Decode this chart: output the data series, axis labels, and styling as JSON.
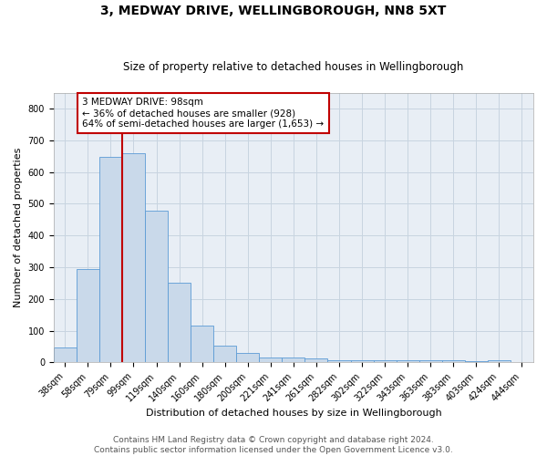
{
  "title": "3, MEDWAY DRIVE, WELLINGBOROUGH, NN8 5XT",
  "subtitle": "Size of property relative to detached houses in Wellingborough",
  "xlabel": "Distribution of detached houses by size in Wellingborough",
  "ylabel": "Number of detached properties",
  "categories": [
    "38sqm",
    "58sqm",
    "79sqm",
    "99sqm",
    "119sqm",
    "140sqm",
    "160sqm",
    "180sqm",
    "200sqm",
    "221sqm",
    "241sqm",
    "261sqm",
    "282sqm",
    "302sqm",
    "322sqm",
    "343sqm",
    "363sqm",
    "383sqm",
    "403sqm",
    "424sqm",
    "444sqm"
  ],
  "values": [
    48,
    293,
    648,
    660,
    478,
    252,
    115,
    53,
    30,
    16,
    15,
    13,
    7,
    7,
    8,
    8,
    8,
    8,
    3,
    8,
    0
  ],
  "bar_color": "#c9d9ea",
  "bar_edge_color": "#5b9bd5",
  "vline_color": "#c00000",
  "annotation_line1": "3 MEDWAY DRIVE: 98sqm",
  "annotation_line2": "← 36% of detached houses are smaller (928)",
  "annotation_line3": "64% of semi-detached houses are larger (1,653) →",
  "annotation_box_color": "#c00000",
  "ylim": [
    0,
    850
  ],
  "yticks": [
    0,
    100,
    200,
    300,
    400,
    500,
    600,
    700,
    800
  ],
  "footer_line1": "Contains HM Land Registry data © Crown copyright and database right 2024.",
  "footer_line2": "Contains public sector information licensed under the Open Government Licence v3.0.",
  "bg_color": "#ffffff",
  "plot_bg_color": "#e8eef5",
  "grid_color": "#c8d4e0",
  "title_fontsize": 10,
  "subtitle_fontsize": 8.5,
  "axis_label_fontsize": 8,
  "tick_fontsize": 7,
  "annotation_fontsize": 7.5,
  "footer_fontsize": 6.5
}
